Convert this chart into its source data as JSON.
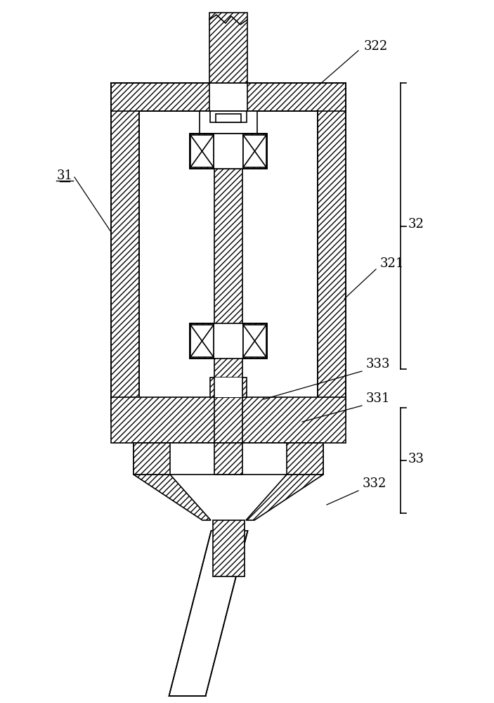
{
  "bg_color": "#ffffff",
  "line_color": "#000000",
  "label_31": "31",
  "label_32": "32",
  "label_321": "321",
  "label_322": "322",
  "label_33": "33",
  "label_331": "331",
  "label_332": "332",
  "label_333": "333",
  "fig_width": 7.03,
  "fig_height": 10.0
}
